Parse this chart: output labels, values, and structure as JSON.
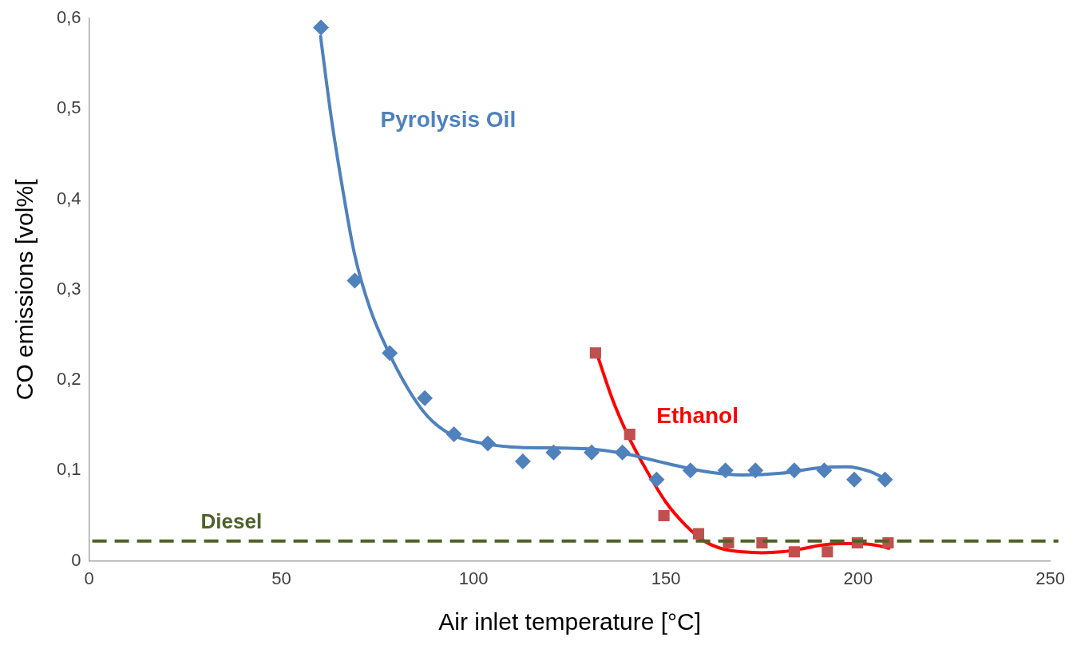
{
  "chart_data": {
    "type": "scatter",
    "xlabel": "Air inlet temperature [°C]",
    "ylabel": "CO emissions [vol%[",
    "xlim": [
      0,
      250
    ],
    "xticks": [
      0,
      50,
      100,
      150,
      200,
      250
    ],
    "ylim": [
      0,
      0.6
    ],
    "yticks": [
      0,
      {
        "value": 0.1,
        "label": "0,1"
      },
      {
        "value": 0.2,
        "label": "0,2"
      },
      {
        "value": 0.3,
        "label": "0,3"
      },
      {
        "value": 0.4,
        "label": "0,4"
      },
      {
        "value": 0.5,
        "label": "0,5"
      },
      {
        "value": 0.6,
        "label": "0,6"
      }
    ],
    "grid": false,
    "legend": false,
    "series": [
      {
        "marker": "diamond",
        "color": "#4f81bd",
        "x": [
          60.3,
          69.1,
          78.2,
          87.3,
          94.9,
          103.7,
          112.8,
          120.8,
          130.7,
          138.7,
          147.6,
          156.4,
          165.5,
          173.3,
          183.4,
          191.2,
          199,
          207
        ],
        "values": [
          0.59,
          0.31,
          0.23,
          0.18,
          0.14,
          0.13,
          0.11,
          0.12,
          0.12,
          0.12,
          0.09,
          0.1,
          0.1,
          0.1,
          0.1,
          0.1,
          0.09,
          0.09
        ]
      },
      {
        "type": "line",
        "name": "Pyrolysis Oil",
        "color": "#4f81bd",
        "line_style": "solid",
        "marker": "none",
        "x": [
          60.2,
          63,
          66,
          69,
          73,
          78,
          83,
          88,
          94,
          100,
          110,
          120,
          130,
          140,
          150,
          160,
          170,
          180,
          190,
          197,
          203,
          207
        ],
        "values": [
          0.58,
          0.49,
          0.41,
          0.34,
          0.28,
          0.23,
          0.19,
          0.16,
          0.14,
          0.132,
          0.126,
          0.125,
          0.124,
          0.118,
          0.108,
          0.099,
          0.095,
          0.097,
          0.103,
          0.104,
          0.099,
          0.091
        ]
      },
      {
        "marker": "square",
        "color": "#c0504d",
        "x": [
          131.7,
          140.6,
          149.5,
          158.5,
          166.3,
          175,
          183.4,
          192,
          199.8,
          207.8
        ],
        "values": [
          0.23,
          0.14,
          0.05,
          0.03,
          0.02,
          0.02,
          0.01,
          0.01,
          0.02,
          0.02
        ]
      },
      {
        "type": "line",
        "name": "Ethanol",
        "color": "#ff0000",
        "line_style": "solid",
        "marker": "none",
        "x": [
          132,
          136,
          140,
          145,
          150,
          155,
          160,
          165,
          170,
          175,
          180,
          185,
          190,
          195,
          200,
          205,
          208
        ],
        "values": [
          0.23,
          0.18,
          0.14,
          0.1,
          0.065,
          0.04,
          0.022,
          0.013,
          0.01,
          0.009,
          0.01,
          0.013,
          0.017,
          0.019,
          0.019,
          0.017,
          0.014
        ]
      }
    ],
    "ref_lines": [
      {
        "axis": "y",
        "value": 0.022,
        "label": "Diesel",
        "color": "#4f6228",
        "line_style": "dashed"
      }
    ]
  }
}
